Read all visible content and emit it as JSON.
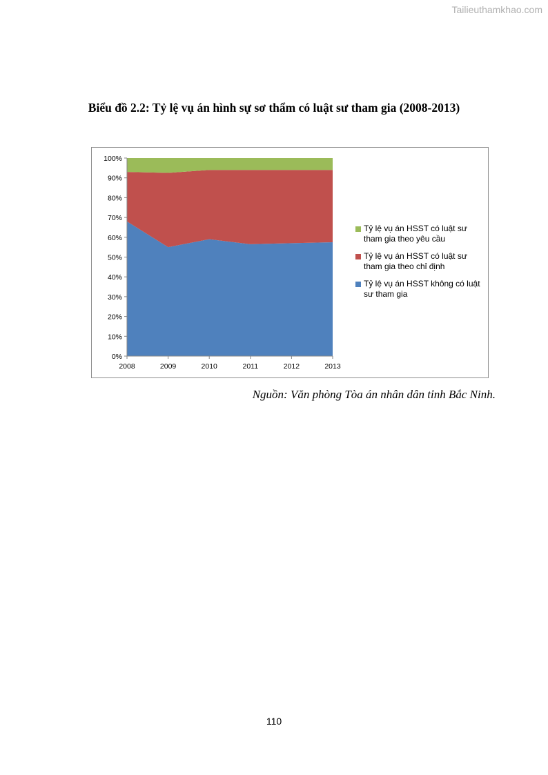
{
  "watermark": "Tailieuthamkhao.com",
  "title": "Biểu đồ 2.2: Tỷ lệ vụ án hình sự sơ thẩm có luật sư tham gia (2008-2013)",
  "source": "Nguồn: Văn phòng Tòa án nhân dân tỉnh Bắc Ninh.",
  "page_number": "110",
  "chart_data": {
    "type": "area",
    "stacked": true,
    "x": [
      "2008",
      "2009",
      "2010",
      "2011",
      "2012",
      "2013"
    ],
    "y_ticks": [
      "0%",
      "10%",
      "20%",
      "30%",
      "40%",
      "50%",
      "60%",
      "70%",
      "80%",
      "90%",
      "100%"
    ],
    "ylim": [
      0,
      100
    ],
    "grid": false,
    "legend_position": "right",
    "series": [
      {
        "name": "Tỷ lệ vụ án HSST không có luật sư tham gia",
        "color": "#4f81bd",
        "values": [
          68,
          55,
          59,
          56.5,
          57,
          57.5
        ]
      },
      {
        "name": "Tỷ lệ vụ án HSST  có luật sư tham gia theo chỉ định",
        "color": "#c0504d",
        "values": [
          25,
          37.5,
          35,
          37.5,
          37,
          36.5
        ]
      },
      {
        "name": "Tỷ lệ vụ án HSST có luật sư tham gia theo yêu cầu",
        "color": "#9bbb59",
        "values": [
          7,
          7.5,
          6,
          6,
          6,
          6
        ]
      }
    ],
    "legend_order": [
      2,
      1,
      0
    ]
  }
}
